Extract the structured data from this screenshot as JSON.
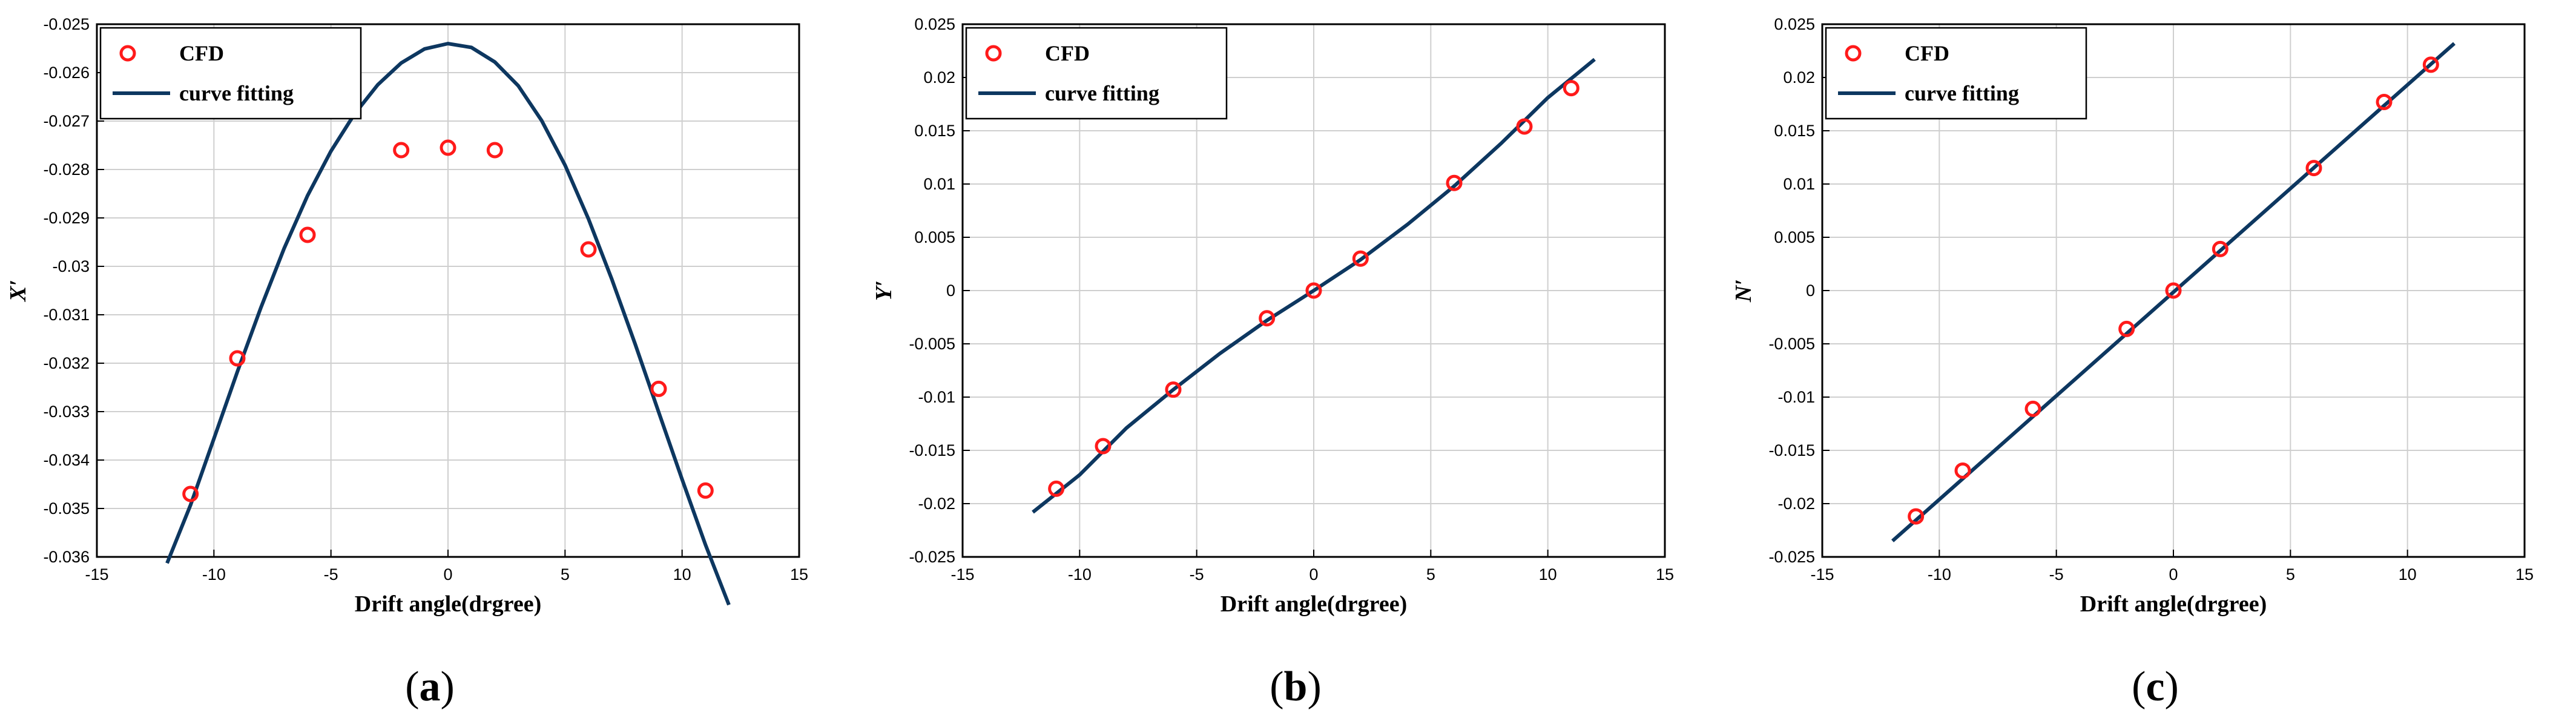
{
  "chart_data": [
    {
      "id": "a",
      "type": "scatter",
      "caption_letter": "a",
      "xlabel": "Drift angle(drgree)",
      "ylabel": "X′",
      "xlim": [
        -15,
        15
      ],
      "ylim": [
        -0.036,
        -0.025
      ],
      "xticks": [
        -15,
        -10,
        -5,
        0,
        5,
        10,
        15
      ],
      "xtick_labels": [
        "-15",
        "-10",
        "-5",
        "0",
        "5",
        "10",
        "15"
      ],
      "yticks": [
        -0.036,
        -0.035,
        -0.034,
        -0.033,
        -0.032,
        -0.031,
        -0.03,
        -0.029,
        -0.028,
        -0.027,
        -0.026,
        -0.025
      ],
      "ytick_labels": [
        "-0.036",
        "-0.035",
        "-0.034",
        "-0.033",
        "-0.032",
        "-0.031",
        "-0.03",
        "-0.029",
        "-0.028",
        "-0.027",
        "-0.026",
        "-0.025"
      ],
      "grid": true,
      "legend_position": "top-left",
      "series": [
        {
          "name": "CFD",
          "kind": "markers",
          "color": "#ff1a1a",
          "x": [
            -11,
            -9,
            -6,
            -2,
            0,
            2,
            6,
            9,
            11
          ],
          "y": [
            -0.0347,
            -0.0319,
            -0.02935,
            -0.0276,
            -0.02755,
            -0.0276,
            -0.02965,
            -0.03253,
            -0.03463
          ]
        },
        {
          "name": "curve fitting",
          "kind": "line",
          "color": "#0d3760",
          "x": [
            -12,
            -11,
            -10,
            -9,
            -8,
            -7,
            -6,
            -5,
            -4,
            -3,
            -2,
            -1,
            0,
            1,
            2,
            3,
            4,
            5,
            6,
            7,
            8,
            9,
            10,
            11,
            12
          ],
          "y": [
            -0.03613,
            -0.03493,
            -0.03356,
            -0.03218,
            -0.03086,
            -0.02963,
            -0.02854,
            -0.02762,
            -0.02686,
            -0.02625,
            -0.0258,
            -0.02551,
            -0.0254,
            -0.02548,
            -0.02578,
            -0.02627,
            -0.02699,
            -0.02791,
            -0.02902,
            -0.03027,
            -0.03161,
            -0.03301,
            -0.0344,
            -0.03575,
            -0.03699
          ]
        }
      ]
    },
    {
      "id": "b",
      "type": "scatter",
      "caption_letter": "b",
      "xlabel": "Drift angle(drgree)",
      "ylabel": "Y′",
      "xlim": [
        -15,
        15
      ],
      "ylim": [
        -0.025,
        0.025
      ],
      "xticks": [
        -15,
        -10,
        -5,
        0,
        5,
        10,
        15
      ],
      "xtick_labels": [
        "-15",
        "-10",
        "-5",
        "0",
        "5",
        "10",
        "15"
      ],
      "yticks": [
        -0.025,
        -0.02,
        -0.015,
        -0.01,
        -0.005,
        0,
        0.005,
        0.01,
        0.015,
        0.02,
        0.025
      ],
      "ytick_labels": [
        "-0.025",
        "-0.02",
        "-0.015",
        "-0.01",
        "-0.005",
        "0",
        "0.005",
        "0.01",
        "0.015",
        "0.02",
        "0.025"
      ],
      "grid": true,
      "legend_position": "top-left",
      "series": [
        {
          "name": "CFD",
          "kind": "markers",
          "color": "#ff1a1a",
          "x": [
            -11,
            -9,
            -6,
            -2,
            0,
            2,
            6,
            9,
            11
          ],
          "y": [
            -0.0186,
            -0.0146,
            -0.0093,
            -0.0026,
            0.0,
            0.003,
            0.0101,
            0.0154,
            0.019
          ]
        },
        {
          "name": "curve fitting",
          "kind": "line",
          "color": "#0d3760",
          "x": [
            -12,
            -10,
            -8,
            -6,
            -4,
            -2,
            0,
            2,
            4,
            6,
            8,
            10,
            12
          ],
          "y": [
            -0.0208,
            -0.0173,
            -0.0129,
            -0.0093,
            -0.0059,
            -0.0028,
            0.0,
            0.0029,
            0.0062,
            0.0098,
            0.0138,
            0.0181,
            0.0217
          ]
        }
      ]
    },
    {
      "id": "c",
      "type": "scatter",
      "caption_letter": "c",
      "xlabel": "Drift angle(drgree)",
      "ylabel": "N′",
      "xlim": [
        -15,
        15
      ],
      "ylim": [
        -0.025,
        0.025
      ],
      "xticks": [
        -15,
        -10,
        -5,
        0,
        5,
        10,
        15
      ],
      "xtick_labels": [
        "-15",
        "-10",
        "-5",
        "0",
        "5",
        "10",
        "15"
      ],
      "yticks": [
        -0.025,
        -0.02,
        -0.015,
        -0.01,
        -0.005,
        0,
        0.005,
        0.01,
        0.015,
        0.02,
        0.025
      ],
      "ytick_labels": [
        "-0.025",
        "-0.02",
        "-0.015",
        "-0.01",
        "-0.005",
        "0",
        "0.005",
        "0.01",
        "0.015",
        "0.02",
        "0.025"
      ],
      "grid": true,
      "legend_position": "top-left",
      "series": [
        {
          "name": "CFD",
          "kind": "markers",
          "color": "#ff1a1a",
          "x": [
            -11,
            -9,
            -6,
            -2,
            0,
            2,
            6,
            9,
            11
          ],
          "y": [
            -0.0212,
            -0.0169,
            -0.0111,
            -0.0036,
            0.0,
            0.0039,
            0.0115,
            0.0177,
            0.0212
          ]
        },
        {
          "name": "curve fitting",
          "kind": "line",
          "color": "#0d3760",
          "x": [
            -12,
            12
          ],
          "y": [
            -0.0235,
            0.0232
          ]
        }
      ]
    }
  ]
}
